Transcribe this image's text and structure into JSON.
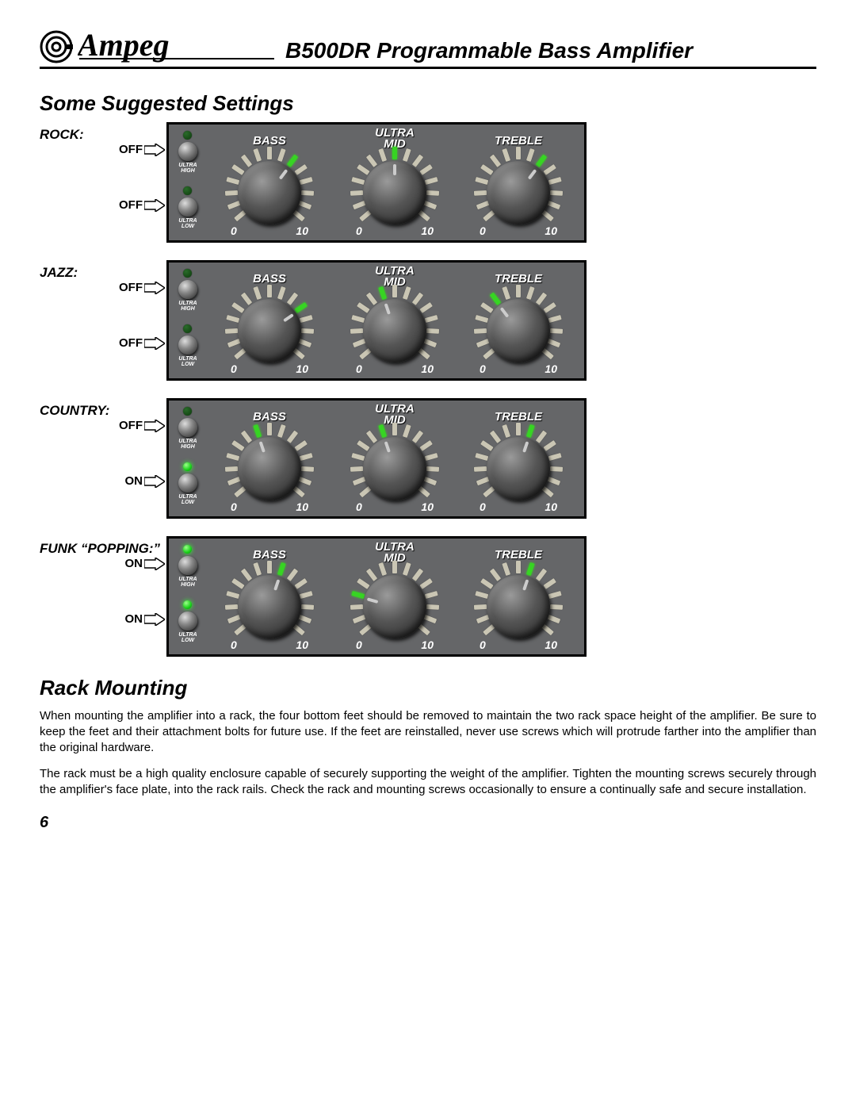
{
  "header": {
    "brand": "Ampeg",
    "title": "B500DR Programmable Bass Amplifier"
  },
  "section_settings_title": "Some Suggested Settings",
  "knob_labels": {
    "bass": "BASS",
    "mid_top": "ULTRA",
    "mid_bottom": "MID",
    "treble": "TREBLE",
    "scale_min": "0",
    "scale_max": "10"
  },
  "button_captions": {
    "ultra_high_1": "ULTRA",
    "ultra_high_2": "HIGH",
    "ultra_low_1": "ULTRA",
    "ultra_low_2": "LOW"
  },
  "colors": {
    "panel_bg": "#656668",
    "tick_off": "#cac6b4",
    "tick_on": "#37d423",
    "led_on": "#18d018",
    "led_off": "#0c3a0c"
  },
  "n_ticks": 15,
  "tick_start_deg": -130,
  "tick_step_deg": 18.57,
  "presets": [
    {
      "name": "ROCK:",
      "ultra_high": {
        "state": "OFF",
        "led_on": false
      },
      "ultra_low": {
        "state": "OFF",
        "led_on": false
      },
      "knobs": {
        "bass": 9,
        "mid": 7,
        "treble": 9
      }
    },
    {
      "name": "JAZZ:",
      "ultra_high": {
        "state": "OFF",
        "led_on": false
      },
      "ultra_low": {
        "state": "OFF",
        "led_on": false
      },
      "knobs": {
        "bass": 10,
        "mid": 6,
        "treble": 5
      }
    },
    {
      "name": "COUNTRY:",
      "ultra_high": {
        "state": "OFF",
        "led_on": false
      },
      "ultra_low": {
        "state": "ON",
        "led_on": true
      },
      "knobs": {
        "bass": 6,
        "mid": 6,
        "treble": 8
      }
    },
    {
      "name": "FUNK “POPPING:”",
      "ultra_high": {
        "state": "ON",
        "led_on": true
      },
      "ultra_low": {
        "state": "ON",
        "led_on": true
      },
      "knobs": {
        "bass": 8,
        "mid": 3,
        "treble": 8
      }
    }
  ],
  "rack": {
    "title": "Rack Mounting",
    "p1": "When mounting the amplifier into a rack, the four bottom feet should be removed to maintain the two rack space height of the amplifier. Be sure to keep the feet and their attachment bolts for future use. If the feet are reinstalled, never use screws which will protrude farther into the amplifier than the original hardware.",
    "p2": "The rack must be a high quality enclosure capable of securely supporting the weight of the amplifier. Tighten the mounting screws securely through the amplifier's face plate, into the rack rails. Check the rack and mounting screws occasionally to ensure a continually safe and secure installation."
  },
  "page_number": "6"
}
